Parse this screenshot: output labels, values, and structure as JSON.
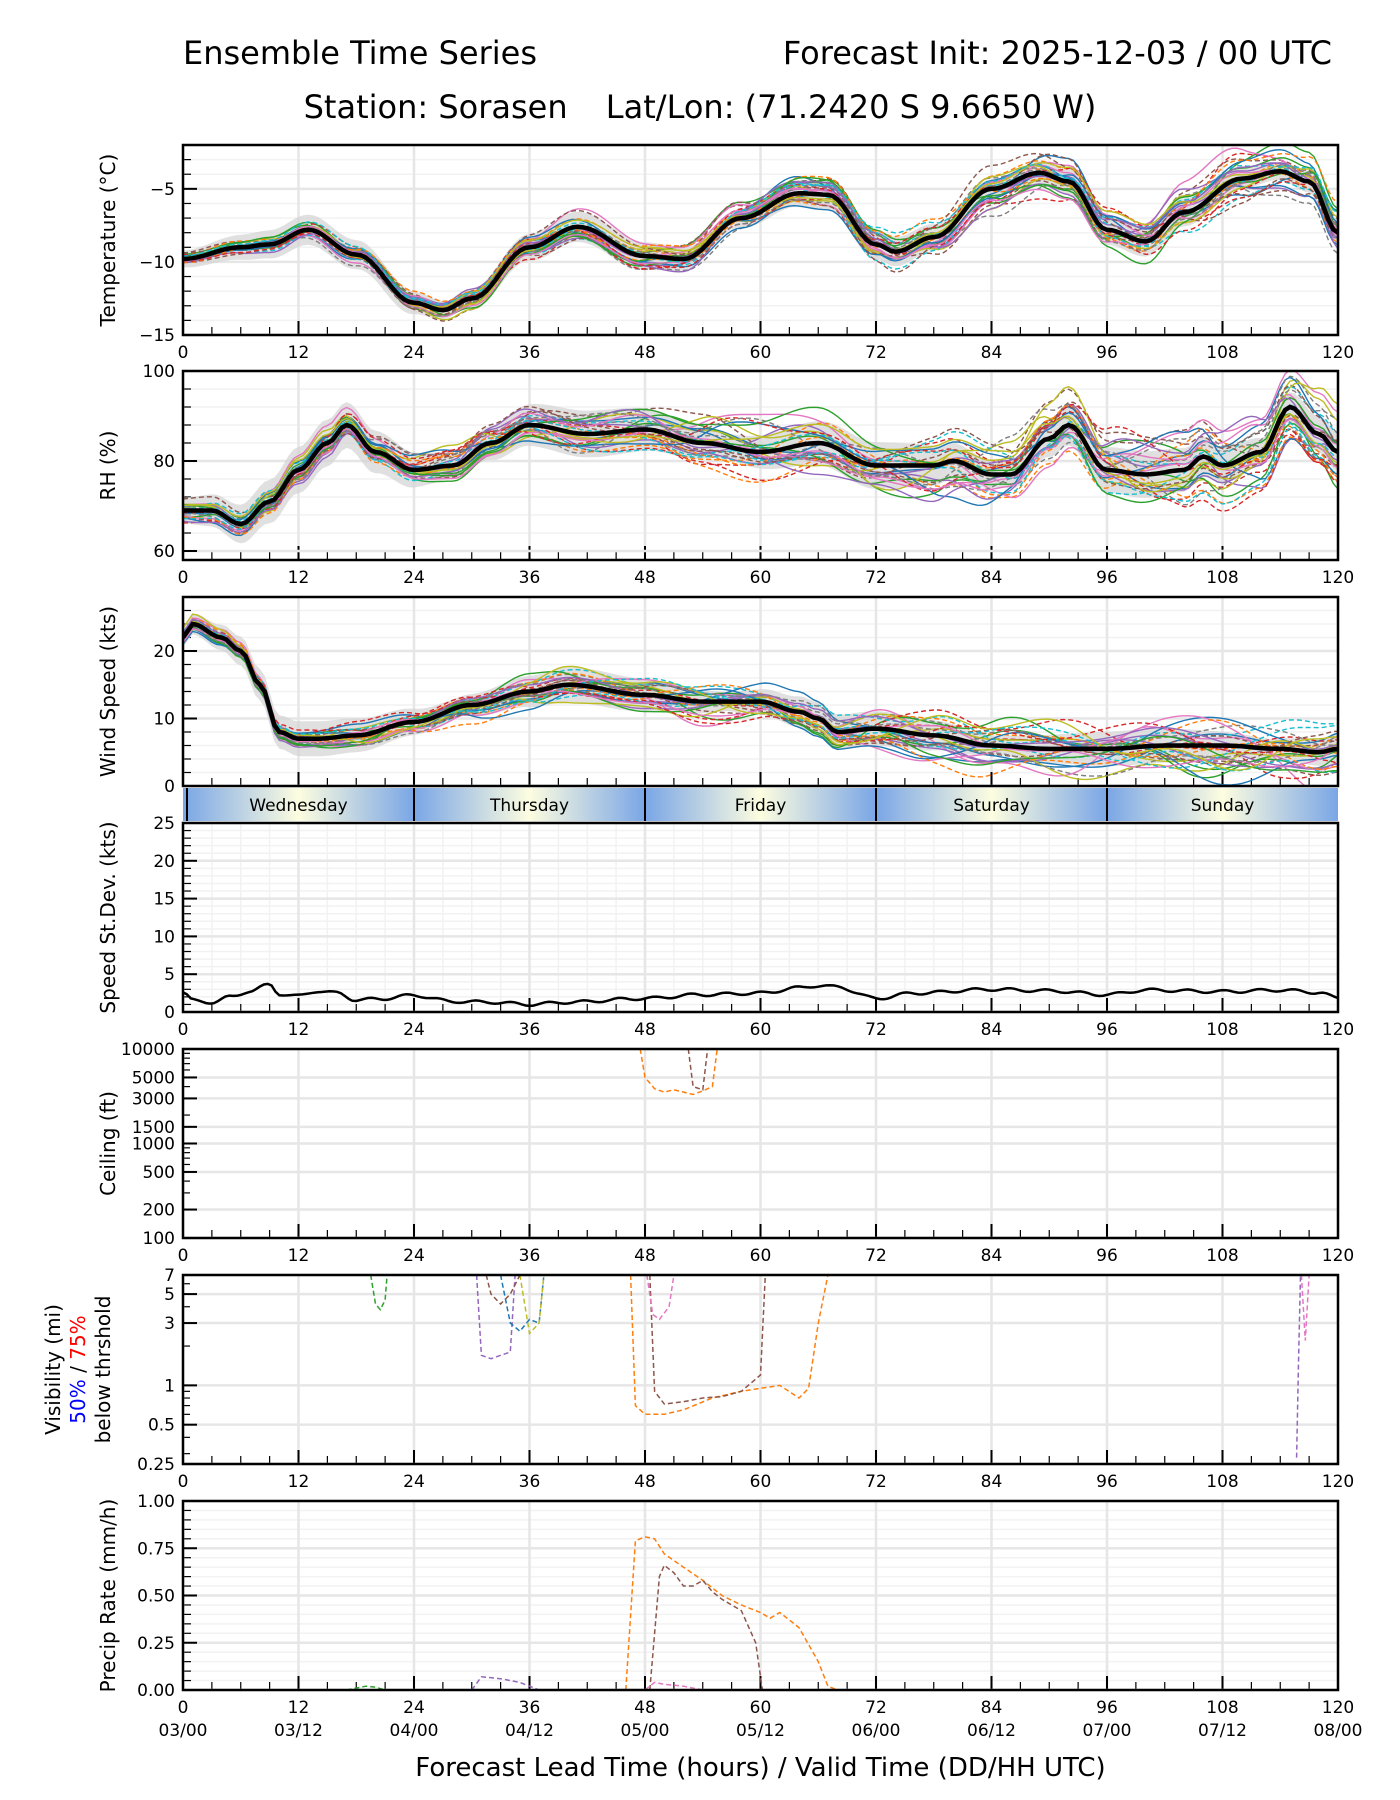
{
  "header": {
    "title": "Ensemble Time Series",
    "init": "Forecast Init: 2025-12-03 / 00 UTC",
    "station": "Station: Sorasen",
    "latlon": "Lat/Lon: (71.2420 S 9.6650 W)"
  },
  "chart_data": [
    {
      "id": "temperature",
      "type": "line",
      "ylabel": "Temperature (°C)",
      "ylim": [
        -15,
        -2
      ],
      "yticks": [
        -15,
        -10,
        -5
      ],
      "ytick_labels": [
        "−15",
        "−10",
        "−5"
      ],
      "x": [
        0,
        6,
        9,
        13,
        18,
        24,
        27,
        30,
        36,
        41,
        48,
        52,
        58,
        64,
        67,
        72,
        74,
        78,
        84,
        89,
        92,
        96,
        100,
        104,
        110,
        114,
        117,
        120
      ],
      "mean": [
        -9.8,
        -9.0,
        -8.8,
        -7.8,
        -9.5,
        -12.8,
        -13.3,
        -12.5,
        -9.0,
        -7.6,
        -9.6,
        -9.8,
        -7.0,
        -5.3,
        -5.4,
        -8.8,
        -9.3,
        -8.3,
        -5.0,
        -3.9,
        -4.5,
        -7.8,
        -8.6,
        -6.6,
        -4.3,
        -3.8,
        -4.5,
        -8.0
      ],
      "spread": 0.8,
      "members": 30
    },
    {
      "id": "rh",
      "type": "line",
      "ylabel": "RH (%)",
      "ylim": [
        58,
        100
      ],
      "yticks": [
        60,
        80,
        100
      ],
      "ytick_labels": [
        "60",
        "80",
        "100"
      ],
      "x": [
        0,
        3,
        6,
        9,
        12,
        15,
        17,
        20,
        24,
        28,
        32,
        36,
        42,
        48,
        54,
        60,
        66,
        72,
        78,
        80,
        84,
        86,
        90,
        92,
        96,
        100,
        104,
        106,
        108,
        112,
        115,
        118,
        120
      ],
      "mean": [
        69,
        69,
        66,
        71,
        78,
        84,
        88,
        82,
        78,
        79,
        84,
        88,
        86,
        87,
        84,
        82,
        84,
        79,
        79,
        80,
        77,
        77,
        85,
        88,
        78,
        77,
        78,
        81,
        79,
        82,
        92,
        86,
        82
      ],
      "spread": 4,
      "members": 30
    },
    {
      "id": "wind",
      "type": "line",
      "ylabel": "Wind Speed (kts)",
      "ylim": [
        0,
        28
      ],
      "yticks": [
        0,
        10,
        20
      ],
      "ytick_labels": [
        "0",
        "10",
        "20"
      ],
      "x": [
        0,
        1,
        4,
        6,
        8,
        10,
        12,
        14,
        18,
        24,
        30,
        36,
        40,
        48,
        54,
        60,
        64,
        66,
        68,
        72,
        78,
        84,
        90,
        96,
        102,
        108,
        114,
        118,
        120
      ],
      "mean": [
        22,
        24,
        22,
        20,
        15,
        8,
        7,
        7,
        7.5,
        9.5,
        12,
        14,
        15,
        13.5,
        12.5,
        12.5,
        11,
        10,
        8,
        8.5,
        7.5,
        6,
        5.5,
        5.5,
        6,
        6,
        5.5,
        5,
        5.5
      ],
      "spread": 2,
      "members": 30
    },
    {
      "id": "speed_stdev",
      "type": "line",
      "ylabel": "Speed St.Dev. (kts)",
      "ylim": [
        0,
        25
      ],
      "yticks": [
        0,
        5,
        10,
        15,
        20,
        25
      ],
      "ytick_labels": [
        "0",
        "5",
        "10",
        "15",
        "20",
        "25"
      ],
      "x": [
        0,
        1,
        3,
        5,
        7,
        9,
        10,
        12,
        14,
        16,
        18,
        20,
        24,
        28,
        32,
        36,
        40,
        48,
        54,
        60,
        64,
        66,
        68,
        72,
        76,
        84,
        90,
        96,
        100,
        108,
        114,
        118,
        120
      ],
      "values": [
        2.6,
        1.5,
        1.3,
        2,
        2.8,
        3.6,
        2.4,
        2.1,
        2.8,
        2.5,
        1.6,
        1.7,
        2.2,
        1.4,
        1.3,
        1.0,
        1.3,
        1.8,
        2.3,
        2.5,
        3.2,
        3.5,
        3.3,
        1.8,
        2.5,
        3.0,
        2.8,
        2.3,
        2.9,
        2.7,
        2.9,
        2.6,
        1.8
      ]
    },
    {
      "id": "ceiling",
      "type": "line",
      "scale": "log",
      "ylabel": "Ceiling (ft)",
      "ylim": [
        100,
        10000
      ],
      "yticks": [
        100,
        200,
        500,
        1000,
        1500,
        3000,
        5000,
        10000
      ],
      "ytick_labels": [
        "100",
        "200",
        "500",
        "1000",
        "1500",
        "3000",
        "5000",
        "10000"
      ],
      "series": [
        {
          "name": "member-orange",
          "color": "#ff7f0e",
          "x": [
            47.5,
            48,
            49,
            50,
            51,
            52,
            53,
            54,
            55,
            55.5
          ],
          "values": [
            10000,
            5000,
            3800,
            3500,
            3700,
            3500,
            3300,
            3600,
            4000,
            10000
          ]
        },
        {
          "name": "member-brown",
          "color": "#8c564b",
          "x": [
            52.5,
            53,
            54,
            54.5
          ],
          "values": [
            10000,
            4000,
            3700,
            10000
          ]
        }
      ]
    },
    {
      "id": "visibility",
      "type": "line",
      "scale": "log",
      "ylabel": "Visibility (mi)",
      "ylabel_50": "50%",
      "ylabel_sep": " / ",
      "ylabel_75": "75%",
      "ylabel_line3": "below thrshold",
      "ylim": [
        0.25,
        7
      ],
      "yticks": [
        0.25,
        0.5,
        1,
        3,
        5,
        7
      ],
      "ytick_labels": [
        "0.25",
        "0.5",
        "1",
        "3",
        "5",
        "7"
      ],
      "series": [
        {
          "name": "member-green",
          "color": "#2ca02c",
          "x": [
            19.5,
            20,
            20.5,
            21,
            21.2
          ],
          "values": [
            7,
            4.2,
            3.8,
            4.5,
            7
          ]
        },
        {
          "name": "member-purple",
          "color": "#9467bd",
          "x": [
            30.5,
            31,
            32,
            33,
            34,
            34.5
          ],
          "values": [
            7,
            1.7,
            1.6,
            1.7,
            1.8,
            7
          ]
        },
        {
          "name": "member-blue",
          "color": "#1f77b4",
          "x": [
            33,
            34,
            35,
            36,
            37,
            37.5
          ],
          "values": [
            7,
            3,
            2.6,
            3.2,
            3,
            7
          ]
        },
        {
          "name": "member-olive",
          "color": "#bcbd22",
          "x": [
            35,
            36,
            37,
            37.5
          ],
          "values": [
            7,
            2.5,
            3,
            7
          ]
        },
        {
          "name": "member-brown-1",
          "color": "#8c564b",
          "x": [
            31.5,
            32,
            33,
            34,
            35
          ],
          "values": [
            7,
            5,
            4.2,
            5,
            7
          ]
        },
        {
          "name": "member-orange",
          "color": "#ff7f0e",
          "x": [
            46.5,
            47,
            48,
            50,
            52,
            55,
            58,
            60,
            62,
            64,
            65,
            66,
            67
          ],
          "values": [
            7,
            0.7,
            0.6,
            0.6,
            0.65,
            0.8,
            0.9,
            0.95,
            1,
            0.8,
            0.95,
            3,
            7
          ]
        },
        {
          "name": "member-brown-2",
          "color": "#8c564b",
          "x": [
            48.5,
            49,
            50,
            52,
            54,
            56,
            58,
            60,
            60.5
          ],
          "values": [
            7,
            0.9,
            0.72,
            0.75,
            0.8,
            0.82,
            0.9,
            1.2,
            7
          ]
        },
        {
          "name": "member-pink",
          "color": "#e377c2",
          "x": [
            48.2,
            48.8,
            49.5,
            50.5,
            51
          ],
          "values": [
            7,
            3.5,
            3.2,
            4,
            7
          ]
        },
        {
          "name": "member-purple-2",
          "color": "#9467bd",
          "x": [
            115.7,
            115.9,
            116.1
          ],
          "values": [
            0.28,
            1.5,
            7
          ]
        },
        {
          "name": "member-pink-2",
          "color": "#e377c2",
          "x": [
            116.2,
            116.6,
            117
          ],
          "values": [
            7,
            2.2,
            7
          ]
        }
      ]
    },
    {
      "id": "precip",
      "type": "line",
      "ylabel": "Precip Rate (mm/h)",
      "ylim": [
        0,
        1
      ],
      "yticks": [
        0,
        0.25,
        0.5,
        0.75,
        1
      ],
      "ytick_labels": [
        "0.00",
        "0.25",
        "0.50",
        "0.75",
        "1.00"
      ],
      "series": [
        {
          "name": "member-orange",
          "color": "#ff7f0e",
          "x": [
            46,
            47,
            48,
            49,
            50,
            52,
            54,
            56,
            58,
            60,
            61,
            62,
            64,
            66,
            67,
            68
          ],
          "values": [
            0,
            0.79,
            0.81,
            0.8,
            0.72,
            0.65,
            0.58,
            0.5,
            0.45,
            0.41,
            0.38,
            0.41,
            0.33,
            0.15,
            0.02,
            0
          ]
        },
        {
          "name": "member-brown",
          "color": "#8c564b",
          "x": [
            48.5,
            49.5,
            50,
            51,
            52,
            53,
            54,
            55,
            56,
            58,
            59.5,
            60.2
          ],
          "values": [
            0,
            0.6,
            0.66,
            0.62,
            0.55,
            0.55,
            0.58,
            0.52,
            0.48,
            0.42,
            0.25,
            0
          ]
        },
        {
          "name": "member-purple",
          "color": "#9467bd",
          "x": [
            30,
            31,
            33,
            35,
            37
          ],
          "values": [
            0,
            0.07,
            0.06,
            0.04,
            0
          ]
        },
        {
          "name": "member-green",
          "color": "#2ca02c",
          "x": [
            17,
            19,
            20,
            21
          ],
          "values": [
            0,
            0.02,
            0.015,
            0
          ]
        },
        {
          "name": "member-pink",
          "color": "#e377c2",
          "x": [
            48,
            49,
            50,
            52,
            54
          ],
          "values": [
            0,
            0.04,
            0.03,
            0.02,
            0
          ]
        }
      ]
    }
  ],
  "day_bar": {
    "days": [
      "Wednesday",
      "Thursday",
      "Friday",
      "Saturday",
      "Sunday"
    ]
  },
  "xaxis": {
    "xlim": [
      0,
      120
    ],
    "ticks": [
      0,
      12,
      24,
      36,
      48,
      60,
      72,
      84,
      96,
      108,
      120
    ],
    "tick_labels": [
      "0",
      "12",
      "24",
      "36",
      "48",
      "60",
      "72",
      "84",
      "96",
      "108",
      "120"
    ],
    "valid_labels": [
      "03/00",
      "03/12",
      "04/00",
      "04/12",
      "05/00",
      "05/12",
      "06/00",
      "06/12",
      "07/00",
      "07/12",
      "08/00"
    ],
    "label": "Forecast Lead Time (hours) / Valid Time (DD/HH UTC)"
  },
  "colors": {
    "member_palette": [
      "#1f77b4",
      "#ff7f0e",
      "#2ca02c",
      "#d62728",
      "#9467bd",
      "#8c564b",
      "#e377c2",
      "#7f7f7f",
      "#bcbd22",
      "#17becf"
    ],
    "mean": "#000000",
    "spread_fill": "#d3d3d3",
    "grid": "#e6e6e6",
    "label_50": "#0000ff",
    "label_75": "#ff0000"
  }
}
